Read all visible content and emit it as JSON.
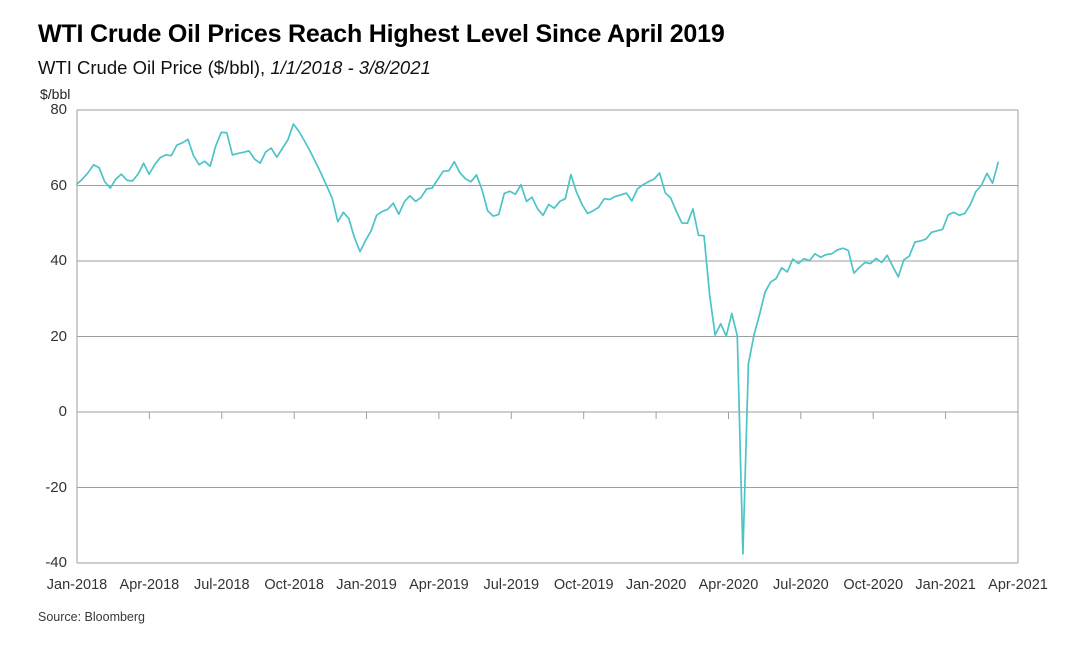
{
  "header": {
    "title": "WTI Crude Oil Prices Reach Highest Level Since April 2019",
    "subtitle_plain": "WTI Crude Oil Price ($/bbl),",
    "subtitle_italic": "1/1/2018 - 3/8/2021"
  },
  "footer": {
    "source": "Source: Bloomberg"
  },
  "chart_data": {
    "type": "line",
    "title": "WTI Crude Oil Prices Reach Highest Level Since April 2019",
    "subtitle": "WTI Crude Oil Price ($/bbl), 1/1/2018 - 3/8/2021",
    "series_name": "WTI Crude Oil Price",
    "unit_label": "$/bbl",
    "ylabel": "$/bbl",
    "ylim": [
      -40,
      80
    ],
    "yticks": [
      80,
      60,
      40,
      20,
      0,
      -20,
      -40
    ],
    "x_tick_labels": [
      "Jan-2018",
      "Apr-2018",
      "Jul-2018",
      "Oct-2018",
      "Jan-2019",
      "Apr-2019",
      "Jul-2019",
      "Oct-2019",
      "Jan-2020",
      "Apr-2020",
      "Jul-2020",
      "Oct-2020",
      "Jan-2021",
      "Apr-2021"
    ],
    "x_range_months": [
      0,
      39
    ],
    "grid": "horizontal-only",
    "legend": "none",
    "line_color": "#4cc4c7",
    "grid_color": "#9e9e9e",
    "sampling": "weekly closes from 2018-01-01 to 2021-03-08",
    "notable_points": {
      "2018_peak": {
        "date": "Oct-2018",
        "value": 76.3
      },
      "2018_low": {
        "date": "Dec-2018",
        "value": 42.5
      },
      "2019_peak": {
        "date": "Apr-2019",
        "value": 66.3
      },
      "covid_crash_low": {
        "date": "Apr-20-2020",
        "value": -37.6
      },
      "final": {
        "date": "Mar-8-2021",
        "value": 66.1
      }
    },
    "values_weekly": [
      60.4,
      61.7,
      63.4,
      65.5,
      64.7,
      61.0,
      59.3,
      61.7,
      63.0,
      61.4,
      61.2,
      63.0,
      65.9,
      63.0,
      65.5,
      67.4,
      68.1,
      67.9,
      70.7,
      71.3,
      72.2,
      67.9,
      65.5,
      66.4,
      65.1,
      70.5,
      74.1,
      74.0,
      68.1,
      68.5,
      68.8,
      69.2,
      67.0,
      65.9,
      68.9,
      69.9,
      67.5,
      69.8,
      72.1,
      76.3,
      74.3,
      71.8,
      69.1,
      66.2,
      63.1,
      59.9,
      56.5,
      50.4,
      52.9,
      51.2,
      46.2,
      42.5,
      45.4,
      48.0,
      52.1,
      53.1,
      53.7,
      55.3,
      52.4,
      55.7,
      57.3,
      55.8,
      56.8,
      59.1,
      59.3,
      61.6,
      63.8,
      63.9,
      66.3,
      63.4,
      61.8,
      61.0,
      62.8,
      58.8,
      53.3,
      51.9,
      52.3,
      57.9,
      58.5,
      57.7,
      60.2,
      55.8,
      56.9,
      53.8,
      52.1,
      55.0,
      54.0,
      55.8,
      56.5,
      62.9,
      58.3,
      55.0,
      52.6,
      53.3,
      54.2,
      56.5,
      56.3,
      57.1,
      57.5,
      58.0,
      55.9,
      59.1,
      60.2,
      61.0,
      61.7,
      63.3,
      58.1,
      56.7,
      53.2,
      50.1,
      50.0,
      53.8,
      46.8,
      46.7,
      31.1,
      20.4,
      23.4,
      20.1,
      26.1,
      20.1,
      -37.6,
      12.8,
      20.4,
      25.8,
      31.8,
      34.4,
      35.4,
      38.2,
      37.1,
      40.5,
      39.3,
      40.6,
      40.1,
      41.9,
      41.0,
      41.7,
      41.9,
      42.9,
      43.4,
      42.8,
      36.8,
      38.3,
      39.6,
      39.3,
      40.7,
      39.6,
      41.5,
      38.6,
      35.8,
      40.3,
      41.3,
      45.0,
      45.3,
      45.8,
      47.6,
      48.0,
      48.4,
      52.2,
      52.9,
      52.1,
      52.6,
      55.0,
      58.4,
      60.1,
      63.2,
      60.6,
      66.1
    ]
  }
}
